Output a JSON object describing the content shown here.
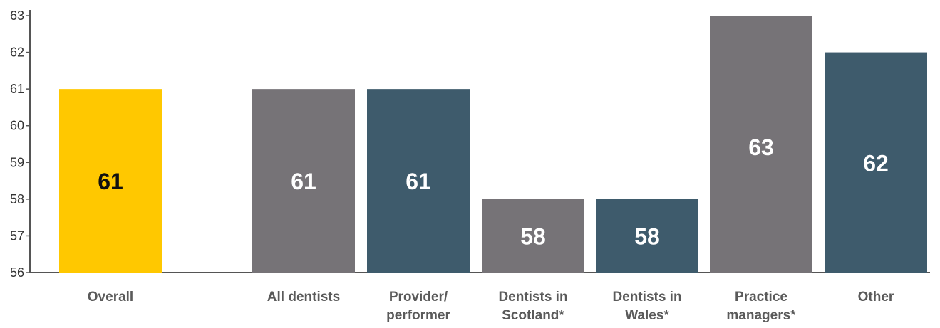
{
  "chart_data": {
    "type": "bar",
    "title": "",
    "xlabel": "",
    "ylabel": "",
    "ylim": [
      56,
      63
    ],
    "yticks": [
      56,
      57,
      58,
      59,
      60,
      61,
      62,
      63
    ],
    "grid": false,
    "legend": "none",
    "categories": [
      [
        "Overall"
      ],
      [
        "All dentists"
      ],
      [
        "Provider/",
        "performer"
      ],
      [
        "Dentists in",
        "Scotland*"
      ],
      [
        "Dentists in",
        "Wales*"
      ],
      [
        "Practice",
        "managers*"
      ],
      [
        "Other"
      ]
    ],
    "values": [
      61,
      61,
      61,
      58,
      58,
      63,
      62
    ],
    "value_labels": [
      "61",
      "61",
      "61",
      "58",
      "58",
      "63",
      "62"
    ],
    "colors": [
      "#FFC800",
      "#767377",
      "#3E5B6C",
      "#767377",
      "#3E5B6C",
      "#767377",
      "#3E5B6C"
    ],
    "value_label_colors": [
      "#111111",
      "#ffffff",
      "#ffffff",
      "#ffffff",
      "#ffffff",
      "#ffffff",
      "#ffffff"
    ]
  }
}
